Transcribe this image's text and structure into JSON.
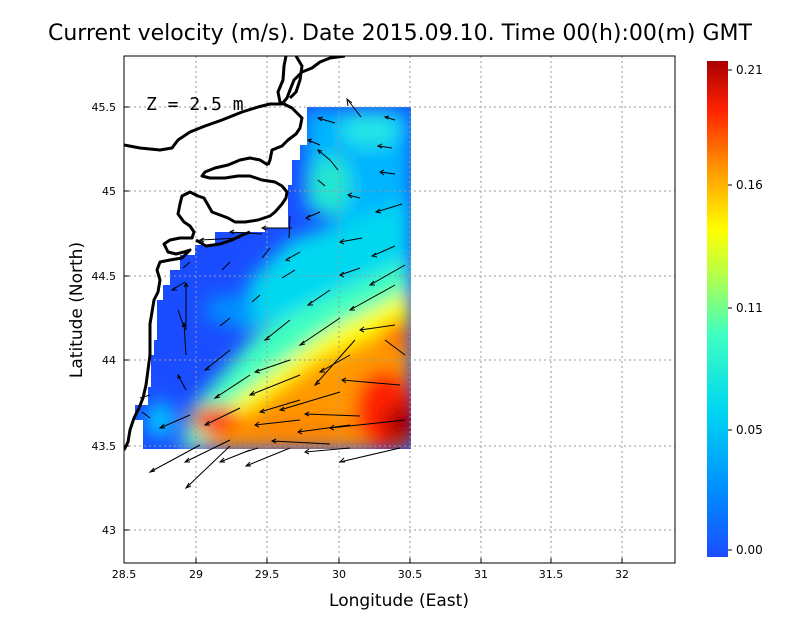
{
  "title": "Current velocity (m/s). Date 2015.09.10. Time 00(h):00(m) GMT",
  "depth_label": "Z = 2.5 m",
  "xlabel": "Longitude (East)",
  "ylabel": "Latitude (North)",
  "x_ticks": [
    "28.5",
    "29",
    "29.5",
    "30",
    "30.5",
    "31",
    "31.5",
    "32"
  ],
  "y_ticks": [
    "43",
    "43.5",
    "44",
    "44.5",
    "45",
    "45.5"
  ],
  "colorbar": {
    "tick_labels": [
      "0.21",
      "0.16",
      "0.11",
      "0.05",
      "0.00"
    ],
    "min": 0.0,
    "max": 0.21,
    "colors": [
      "#1a4dff",
      "#00a0ff",
      "#00e6e6",
      "#7dff7d",
      "#ffff00",
      "#ff9900",
      "#ff2200",
      "#b00000"
    ]
  },
  "chart_data": {
    "type": "heatmap",
    "title": "Current velocity (m/s). Date 2015.09.10. Time 00(h):00(m) GMT",
    "xlabel": "Longitude (East)",
    "ylabel": "Latitude (North)",
    "xlim": [
      28.5,
      32.4
    ],
    "ylim": [
      42.8,
      45.8
    ],
    "grid": true,
    "units": "m/s",
    "value_range": [
      0.0,
      0.21
    ]
  }
}
